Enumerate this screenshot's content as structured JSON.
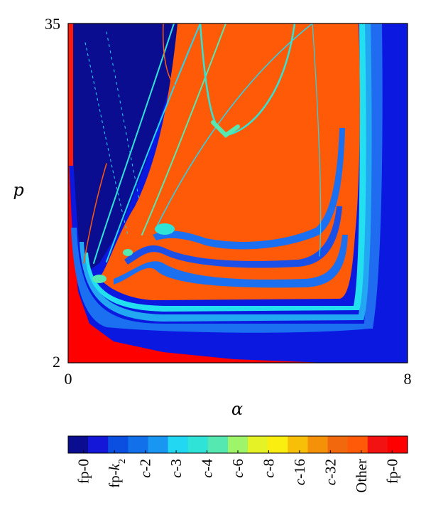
{
  "chart_data": {
    "type": "heatmap",
    "title": "",
    "xlabel": "α",
    "ylabel": "p",
    "xlim": [
      0,
      8
    ],
    "ylim": [
      2,
      35
    ],
    "x_ticks": [
      "0",
      "8"
    ],
    "y_ticks": [
      "2",
      "35"
    ],
    "grid": false,
    "colorbar": {
      "orientation": "horizontal",
      "placement": "bottom",
      "colors": [
        "#0a0d8f",
        "#1417d8",
        "#0a4fe0",
        "#1170ea",
        "#1896f2",
        "#22d7f2",
        "#2fe4d6",
        "#55e8b0",
        "#9ef56a",
        "#e5f226",
        "#f9ee10",
        "#f8bf08",
        "#f59109",
        "#f2680d",
        "#ff5a08",
        "#f21212",
        "#ff0000"
      ],
      "labels": [
        {
          "prefix": "fp-0",
          "italic": "",
          "sub": ""
        },
        {
          "prefix": "fp-",
          "italic": "k",
          "sub": "2"
        },
        {
          "prefix": "",
          "italic": "c",
          "sub": "",
          "suffix": "-2"
        },
        {
          "prefix": "",
          "italic": "c",
          "sub": "",
          "suffix": "-3"
        },
        {
          "prefix": "",
          "italic": "c",
          "sub": "",
          "suffix": "-4"
        },
        {
          "prefix": "",
          "italic": "c",
          "sub": "",
          "suffix": "-6"
        },
        {
          "prefix": "",
          "italic": "c",
          "sub": "",
          "suffix": "-8"
        },
        {
          "prefix": "",
          "italic": "c",
          "sub": "",
          "suffix": "-16"
        },
        {
          "prefix": "",
          "italic": "c",
          "sub": "",
          "suffix": "-32"
        },
        {
          "prefix": "Other",
          "italic": "",
          "sub": ""
        },
        {
          "prefix": "fp-0",
          "italic": "",
          "sub": ""
        }
      ]
    },
    "regions": [
      {
        "class": "fp-k2",
        "color": "#0a18e0"
      },
      {
        "class": "fp-0 (low)",
        "color": "#0a0d8f"
      },
      {
        "class": "fp-0 (high)",
        "color": "#ff0000"
      },
      {
        "class": "c-2",
        "color": "#1a70f0"
      },
      {
        "class": "c-3",
        "color": "#22a8f2"
      },
      {
        "class": "c-4",
        "color": "#22e0f0"
      },
      {
        "class": "c-6",
        "color": "#5ee8a8"
      },
      {
        "class": "Other",
        "color": "#ff5a08"
      }
    ]
  }
}
